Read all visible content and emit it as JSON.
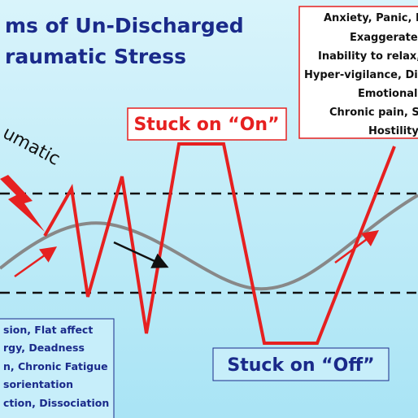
{
  "header": {
    "title_lines": [
      "ms of Un-Discharged",
      "raumatic Stress"
    ]
  },
  "on_symptoms": [
    "Anxiety, Panic, I",
    "Exaggerated",
    "Inability to relax,",
    "Hyper-vigilance, Di",
    "Emotional",
    "Chronic pain, S",
    "Hostility"
  ],
  "stuck_on": "Stuck on “On”",
  "stuck_off": "Stuck on “Off”",
  "event_label": "umatic",
  "off_symptoms": [
    "sion, Flat affect",
    "rgy, Deadness",
    "n, Chronic Fatigue",
    "sorientation",
    "ction, Dissociation"
  ]
}
